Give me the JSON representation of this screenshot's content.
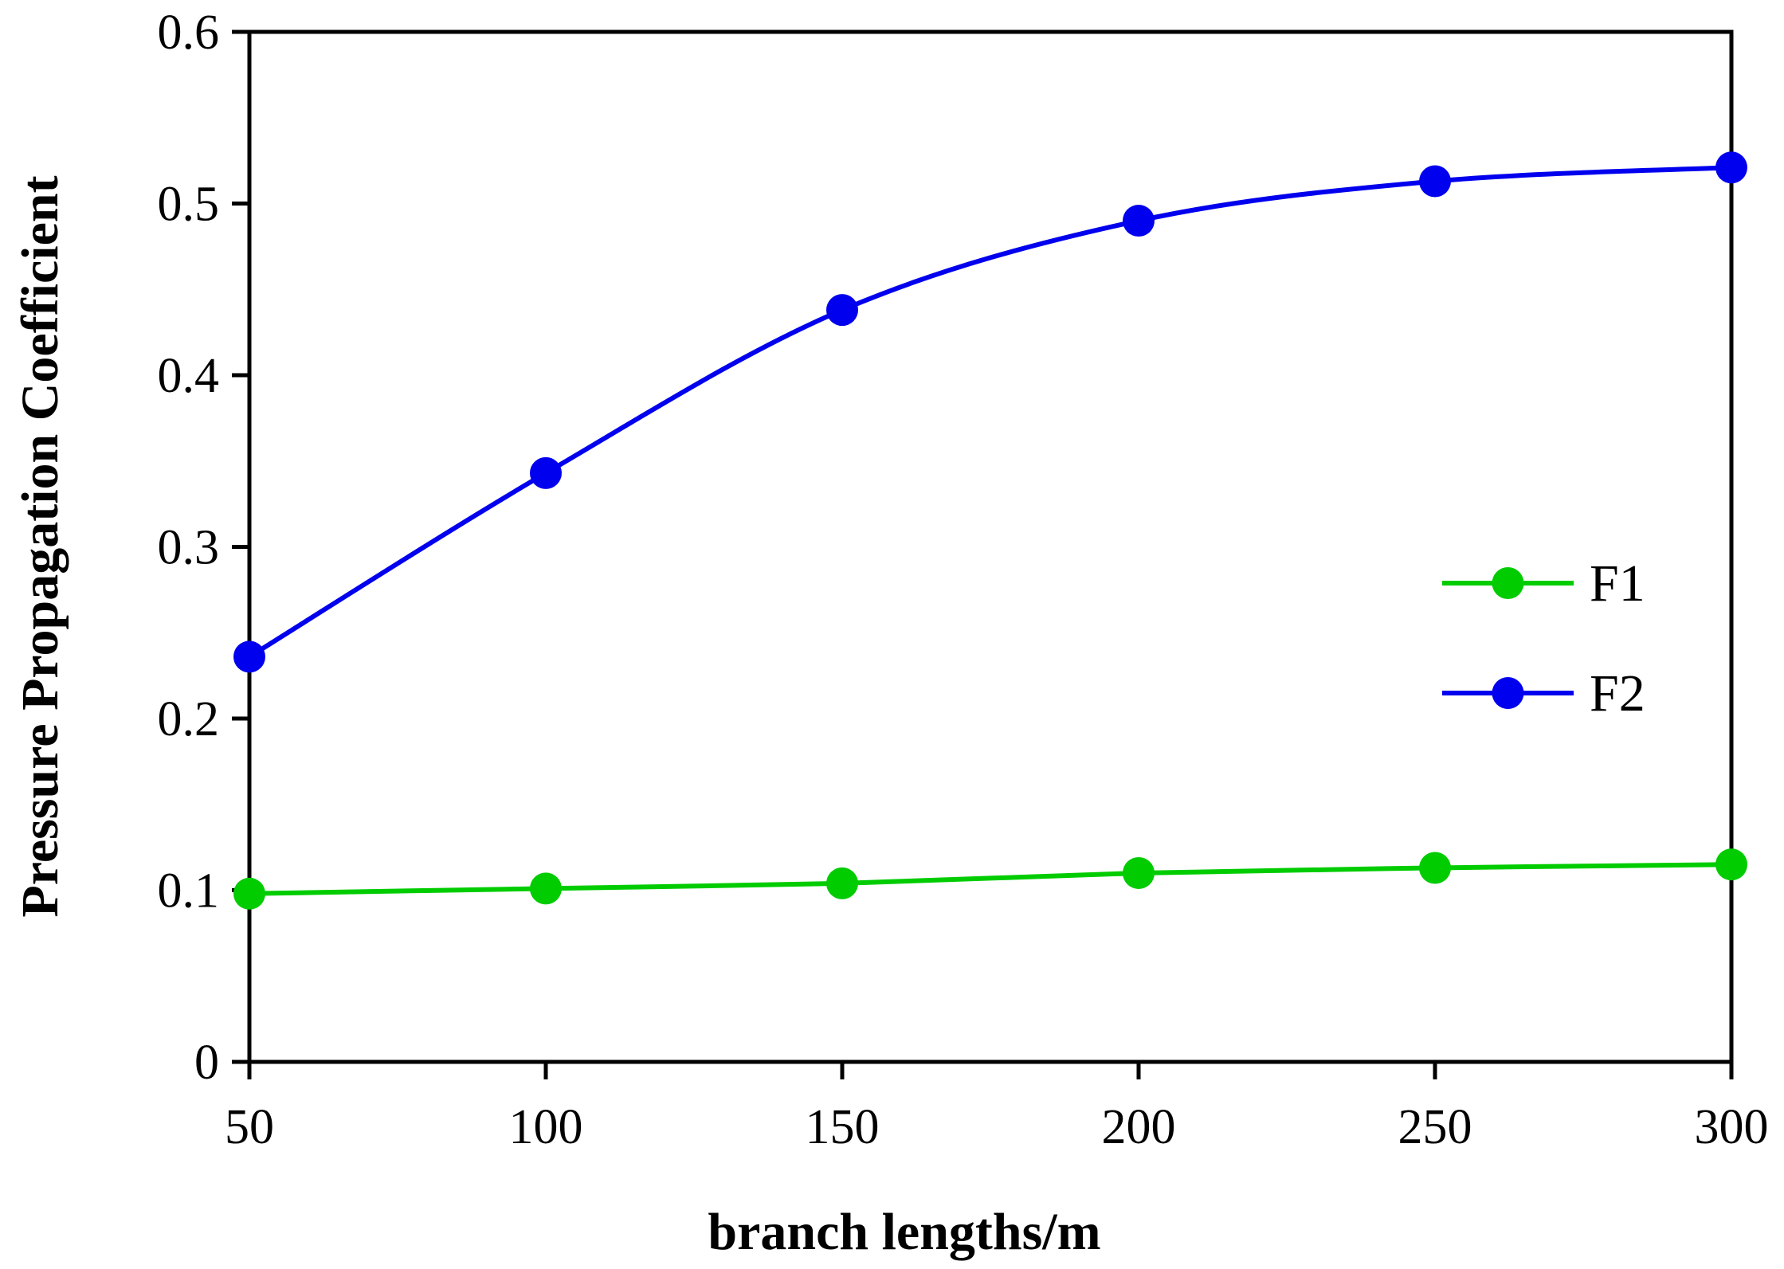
{
  "chart_data": {
    "type": "line",
    "title": "",
    "xlabel": "branch lengths/m",
    "ylabel": "Pressure Propagation Coefficient",
    "x": [
      50,
      100,
      150,
      200,
      250,
      300
    ],
    "xlim": [
      50,
      300
    ],
    "ylim": [
      0,
      0.6
    ],
    "xticks": [
      "50",
      "100",
      "150",
      "200",
      "250",
      "300"
    ],
    "yticks": [
      "0",
      "0.1",
      "0.2",
      "0.3",
      "0.4",
      "0.5",
      "0.6"
    ],
    "grid": false,
    "legend_position": "right-middle",
    "series": [
      {
        "name": "F1",
        "color": "#00cc00",
        "values": [
          0.098,
          0.101,
          0.104,
          0.11,
          0.113,
          0.115
        ]
      },
      {
        "name": "F2",
        "color": "#0000ee",
        "values": [
          0.236,
          0.343,
          0.438,
          0.49,
          0.513,
          0.521
        ]
      }
    ]
  }
}
